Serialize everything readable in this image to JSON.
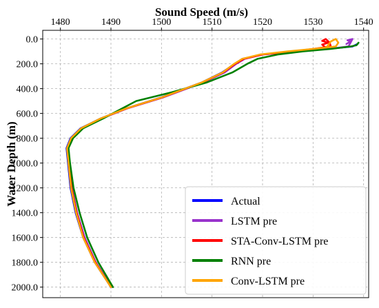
{
  "chart_data": {
    "type": "line",
    "title": "",
    "xlabel": "Sound Speed (m/s)",
    "ylabel": "Water Depth (m)",
    "xlim": [
      1476.5,
      1541
    ],
    "ylim": [
      2085,
      -70
    ],
    "y_inverted": true,
    "x_axis_position": "top",
    "xticks": [
      1480,
      1490,
      1500,
      1510,
      1520,
      1530,
      1540
    ],
    "xtick_labels": [
      "1480",
      "1490",
      "1500",
      "1510",
      "1520",
      "1530",
      "1540"
    ],
    "yticks": [
      0,
      200,
      400,
      600,
      800,
      1000,
      1200,
      1400,
      1600,
      1800,
      2000
    ],
    "ytick_labels": [
      "0.0",
      "200.0",
      "400.0",
      "600.0",
      "800.0",
      "1000.0",
      "1200.0",
      "1400.0",
      "1600.0",
      "1800.0",
      "2000.0"
    ],
    "grid": true,
    "legend_position": "bottom-right",
    "series": [
      {
        "name": "Actual",
        "color": "#0000ff",
        "points": [
          [
            1538.8,
            40
          ],
          [
            1537.8,
            60
          ],
          [
            1533,
            80
          ],
          [
            1527,
            100
          ],
          [
            1520,
            125
          ],
          [
            1516,
            160
          ],
          [
            1514.5,
            200
          ],
          [
            1512,
            270
          ],
          [
            1508,
            350
          ],
          [
            1500,
            470
          ],
          [
            1493,
            560
          ],
          [
            1488,
            640
          ],
          [
            1484,
            720
          ],
          [
            1482,
            800
          ],
          [
            1481.2,
            880
          ],
          [
            1481.5,
            1000
          ],
          [
            1482,
            1200
          ],
          [
            1483,
            1400
          ],
          [
            1484.5,
            1600
          ],
          [
            1486.8,
            1800
          ],
          [
            1490,
            2000
          ]
        ]
      },
      {
        "name": "LSTM pre",
        "color": "#9933cc",
        "points": [
          [
            1536.6,
            40
          ],
          [
            1537.4,
            20
          ],
          [
            1536.8,
            10
          ],
          [
            1537.8,
            0
          ],
          [
            1537,
            60
          ],
          [
            1533,
            80
          ],
          [
            1527,
            100
          ],
          [
            1520,
            125
          ],
          [
            1516.5,
            160
          ],
          [
            1514.8,
            200
          ],
          [
            1512.5,
            270
          ],
          [
            1508.3,
            350
          ],
          [
            1500.4,
            470
          ],
          [
            1493.2,
            560
          ],
          [
            1488.2,
            640
          ],
          [
            1484.3,
            720
          ],
          [
            1482.4,
            800
          ],
          [
            1481.6,
            880
          ],
          [
            1481.8,
            1000
          ],
          [
            1482.3,
            1200
          ],
          [
            1483.3,
            1400
          ],
          [
            1484.8,
            1600
          ],
          [
            1487,
            1800
          ],
          [
            1490.1,
            2000
          ]
        ]
      },
      {
        "name": "STA-Conv-LSTM pre",
        "color": "#ff0000",
        "points": [
          [
            1532.2,
            60
          ],
          [
            1531.8,
            45
          ],
          [
            1533,
            30
          ],
          [
            1531.8,
            15
          ],
          [
            1532.5,
            0
          ],
          [
            1533.3,
            30
          ],
          [
            1533.5,
            60
          ],
          [
            1530,
            80
          ],
          [
            1526,
            100
          ],
          [
            1520,
            125
          ],
          [
            1516.3,
            160
          ],
          [
            1514.6,
            200
          ],
          [
            1512.2,
            270
          ],
          [
            1508.1,
            350
          ],
          [
            1500.2,
            470
          ],
          [
            1493.1,
            560
          ],
          [
            1488.1,
            640
          ],
          [
            1484.2,
            720
          ],
          [
            1482.2,
            800
          ],
          [
            1481.4,
            880
          ],
          [
            1481.7,
            1000
          ],
          [
            1482.2,
            1200
          ],
          [
            1483.2,
            1400
          ],
          [
            1484.6,
            1600
          ],
          [
            1486.9,
            1800
          ],
          [
            1490,
            2000
          ]
        ]
      },
      {
        "name": "RNN pre",
        "color": "#008000",
        "points": [
          [
            1539,
            30
          ],
          [
            1538.6,
            50
          ],
          [
            1537.5,
            60
          ],
          [
            1533.5,
            80
          ],
          [
            1528,
            100
          ],
          [
            1523,
            125
          ],
          [
            1519,
            160
          ],
          [
            1517,
            200
          ],
          [
            1514,
            270
          ],
          [
            1509,
            350
          ],
          [
            1502,
            430
          ],
          [
            1495,
            500
          ],
          [
            1488.5,
            640
          ],
          [
            1484.5,
            720
          ],
          [
            1482.5,
            800
          ],
          [
            1481.6,
            880
          ],
          [
            1481.9,
            1000
          ],
          [
            1482.6,
            1200
          ],
          [
            1483.8,
            1400
          ],
          [
            1485.3,
            1600
          ],
          [
            1487.5,
            1800
          ],
          [
            1490.4,
            2000
          ]
        ]
      },
      {
        "name": "Conv-LSTM pre",
        "color": "#ffa500",
        "points": [
          [
            1532.8,
            60
          ],
          [
            1533.5,
            20
          ],
          [
            1534.5,
            0
          ],
          [
            1535,
            30
          ],
          [
            1534.5,
            60
          ],
          [
            1530,
            80
          ],
          [
            1525,
            100
          ],
          [
            1519.5,
            125
          ],
          [
            1516,
            160
          ],
          [
            1514.4,
            200
          ],
          [
            1512.1,
            270
          ],
          [
            1508,
            350
          ],
          [
            1500.1,
            470
          ],
          [
            1493,
            560
          ],
          [
            1488,
            640
          ],
          [
            1484.1,
            720
          ],
          [
            1482.1,
            800
          ],
          [
            1481.3,
            880
          ],
          [
            1481.6,
            1000
          ],
          [
            1482.1,
            1200
          ],
          [
            1483.1,
            1400
          ],
          [
            1484.5,
            1600
          ],
          [
            1486.8,
            1800
          ],
          [
            1490,
            2000
          ]
        ]
      }
    ]
  }
}
